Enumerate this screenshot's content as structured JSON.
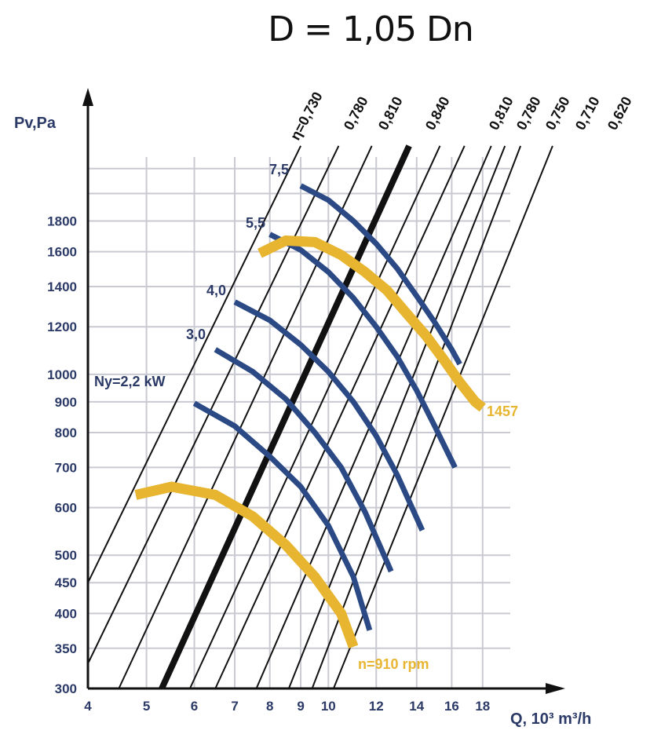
{
  "chart_data": {
    "type": "line",
    "title": "D = 1,05 Dn",
    "xlabel": "Q, 10³ m³/h",
    "ylabel": "Pv,Pa",
    "x_scale": "log",
    "y_scale": "log",
    "xlim": [
      4,
      20
    ],
    "ylim": [
      300,
      2300
    ],
    "grid": true,
    "x_ticks": [
      4,
      5,
      6,
      7,
      8,
      9,
      10,
      12,
      14,
      16,
      18
    ],
    "y_ticks": [
      300,
      350,
      400,
      450,
      500,
      600,
      700,
      800,
      900,
      1000,
      1200,
      1400,
      1600,
      1800
    ],
    "x_tick_labels": [
      "4",
      "5",
      "6",
      "7",
      "8",
      "9",
      "10",
      "12",
      "14",
      "16",
      "18"
    ],
    "y_tick_labels": [
      "300",
      "350",
      "400",
      "450",
      "500",
      "600",
      "700",
      "800",
      "900",
      "1000",
      "1200",
      "1400",
      "1600",
      "1800"
    ],
    "efficiency_lines": [
      {
        "label": "η=0,730",
        "points": [
          [
            4.0,
            450
          ],
          [
            9.0,
            2400
          ]
        ],
        "emphasis": false
      },
      {
        "label": "η=0,730",
        "points": [
          [
            4.0,
            330
          ],
          [
            10.4,
            2400
          ]
        ],
        "emphasis": false
      },
      {
        "label": "0,780",
        "points": [
          [
            4.5,
            300
          ],
          [
            11.8,
            2400
          ]
        ],
        "emphasis": false
      },
      {
        "label": "0,810",
        "points": [
          [
            5.3,
            300
          ],
          [
            13.6,
            2400
          ]
        ],
        "emphasis": true
      },
      {
        "label": "0,840",
        "points": [
          [
            5.9,
            300
          ],
          [
            15.3,
            2400
          ]
        ],
        "emphasis": false
      },
      {
        "label": "0,810",
        "points": [
          [
            6.5,
            300
          ],
          [
            16.8,
            2400
          ]
        ],
        "emphasis": false
      },
      {
        "label": "0,780",
        "points": [
          [
            7.6,
            300
          ],
          [
            18.6,
            2400
          ]
        ],
        "emphasis": false
      },
      {
        "label": "0,750",
        "points": [
          [
            8.6,
            300
          ],
          [
            19.6,
            2400
          ]
        ],
        "emphasis": false
      },
      {
        "label": "0,710",
        "points": [
          [
            9.4,
            300
          ],
          [
            20.8,
            2400
          ]
        ],
        "emphasis": false
      },
      {
        "label": "0,620",
        "points": [
          [
            10.2,
            300
          ],
          [
            23.5,
            2400
          ]
        ],
        "emphasis": false
      }
    ],
    "top_labels": [
      "η=0,730",
      "0,780",
      "0,810",
      "0,840",
      "0,810",
      "0,780",
      "0,750",
      "0,710",
      "0,620"
    ],
    "power_curves": [
      {
        "label": "Ny=2,2 kW",
        "points": [
          [
            6.0,
            895
          ],
          [
            7.0,
            820
          ],
          [
            8.0,
            730
          ],
          [
            9.0,
            650
          ],
          [
            10.0,
            560
          ],
          [
            11.0,
            460
          ],
          [
            11.7,
            375
          ]
        ]
      },
      {
        "label": "3,0",
        "points": [
          [
            6.5,
            1100
          ],
          [
            7.5,
            1010
          ],
          [
            8.5,
            910
          ],
          [
            9.5,
            800
          ],
          [
            10.5,
            700
          ],
          [
            11.5,
            590
          ],
          [
            12.7,
            470
          ]
        ]
      },
      {
        "label": "4,0",
        "points": [
          [
            7.0,
            1320
          ],
          [
            8.0,
            1230
          ],
          [
            9.0,
            1120
          ],
          [
            10.0,
            1010
          ],
          [
            11.0,
            900
          ],
          [
            12.0,
            790
          ],
          [
            13.0,
            680
          ],
          [
            14.3,
            550
          ]
        ]
      },
      {
        "label": "5,5",
        "points": [
          [
            8.0,
            1710
          ],
          [
            9.0,
            1610
          ],
          [
            10.0,
            1480
          ],
          [
            11.0,
            1340
          ],
          [
            12.0,
            1200
          ],
          [
            13.0,
            1070
          ],
          [
            14.0,
            940
          ],
          [
            15.0,
            820
          ],
          [
            16.2,
            700
          ]
        ]
      },
      {
        "label": "7,5",
        "points": [
          [
            9.0,
            2060
          ],
          [
            10.0,
            1950
          ],
          [
            11.0,
            1800
          ],
          [
            12.0,
            1650
          ],
          [
            13.0,
            1500
          ],
          [
            14.0,
            1350
          ],
          [
            15.0,
            1220
          ],
          [
            16.0,
            1100
          ],
          [
            16.5,
            1040
          ]
        ]
      }
    ],
    "speed_curves": [
      {
        "label": "n=910 rpm",
        "points": [
          [
            4.8,
            630
          ],
          [
            5.5,
            650
          ],
          [
            6.5,
            630
          ],
          [
            7.5,
            580
          ],
          [
            8.5,
            520
          ],
          [
            9.5,
            460
          ],
          [
            10.5,
            400
          ],
          [
            11.0,
            352
          ]
        ]
      },
      {
        "label": "1457",
        "points": [
          [
            7.7,
            1590
          ],
          [
            8.5,
            1670
          ],
          [
            9.5,
            1660
          ],
          [
            10.5,
            1580
          ],
          [
            11.5,
            1480
          ],
          [
            12.5,
            1380
          ],
          [
            13.5,
            1260
          ],
          [
            14.5,
            1160
          ],
          [
            15.5,
            1060
          ],
          [
            16.5,
            970
          ],
          [
            17.5,
            900
          ],
          [
            18.0,
            880
          ]
        ]
      }
    ]
  }
}
